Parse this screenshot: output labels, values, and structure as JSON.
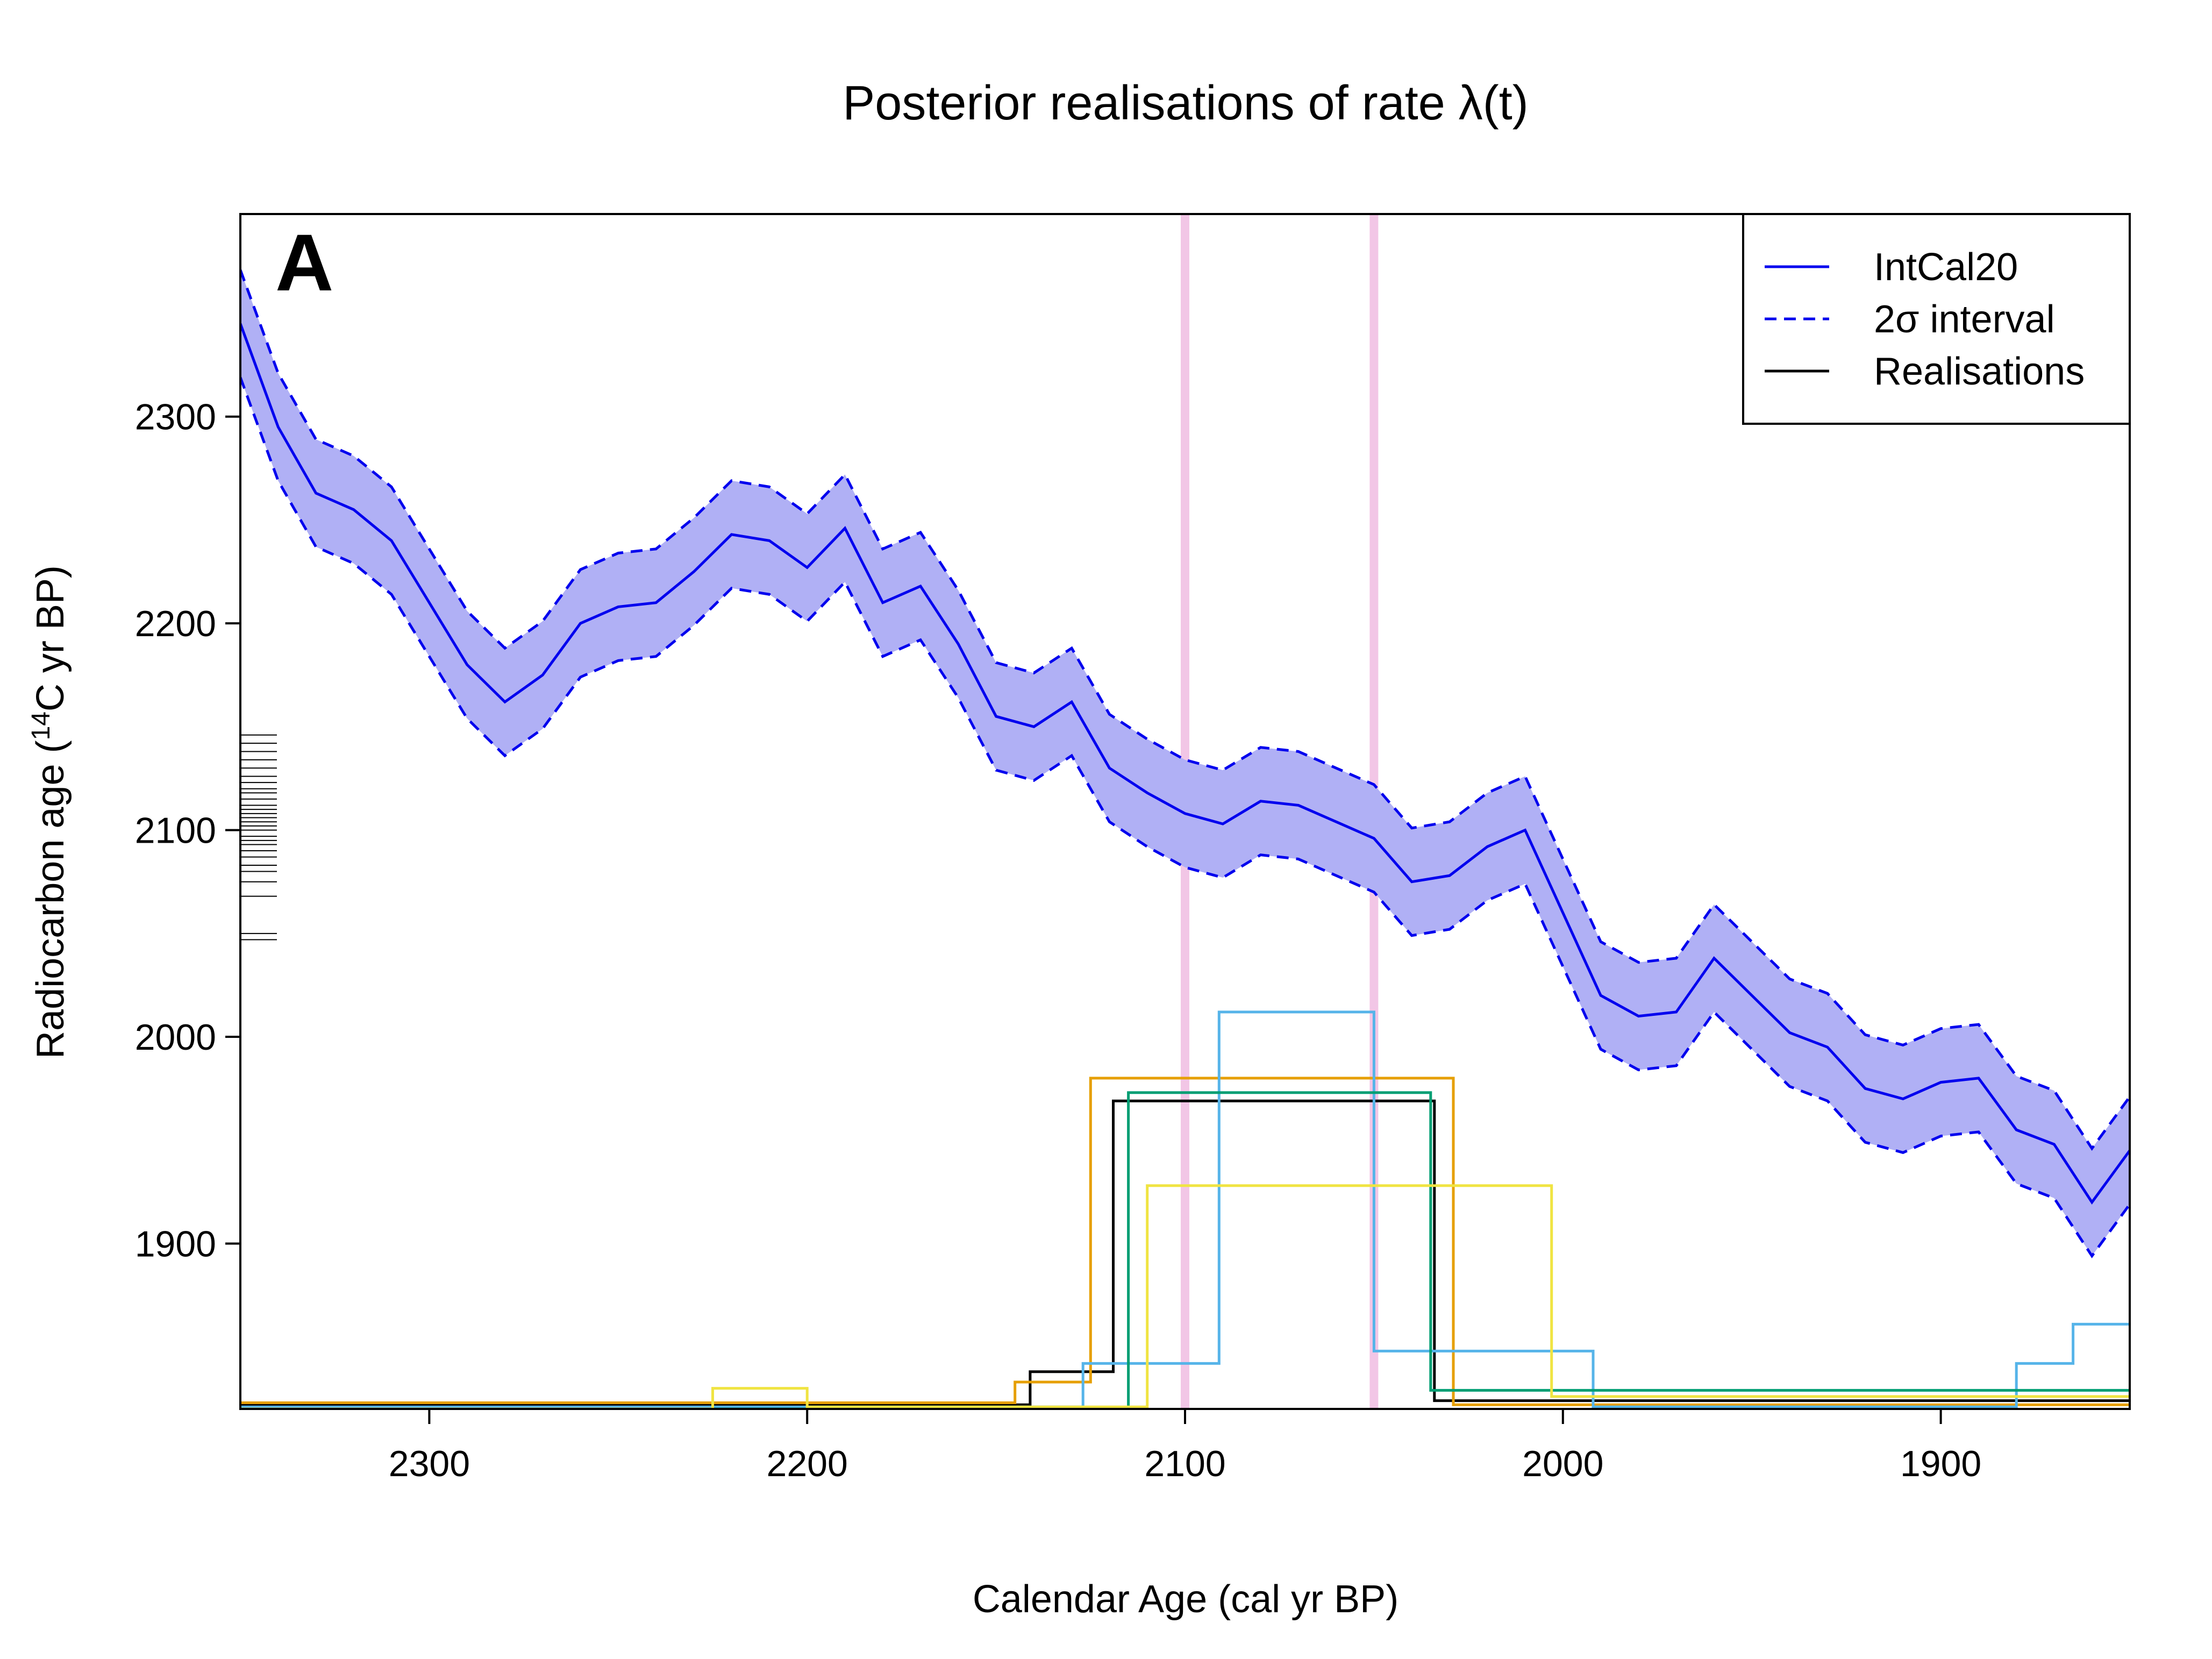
{
  "chart_data": {
    "type": "line",
    "title": "Posterior realisations of rate λ(t)",
    "panel_label": "A",
    "xlabel": "Calendar Age (cal yr BP)",
    "ylabel_prefix": "Radiocarbon age (",
    "ylabel_superscript": "14",
    "ylabel_suffix": "C yr BP)",
    "xlim": [
      2350,
      1850
    ],
    "x_reversed": true,
    "ylim": [
      1820,
      2398
    ],
    "x_ticks": [
      2300,
      2200,
      2100,
      2000,
      1900
    ],
    "y_ticks": [
      1900,
      2000,
      2100,
      2200,
      2300
    ],
    "grid": false,
    "legend_position": "top-right",
    "legend": [
      {
        "label": "IntCal20",
        "style": "solid",
        "color": "#0000ee"
      },
      {
        "label": "2σ interval",
        "style": "dashed",
        "color": "#0000ee"
      },
      {
        "label": "Realisations",
        "style": "solid",
        "color": "#000000"
      }
    ],
    "colors": {
      "curve": "#0000ee",
      "band": "#b0b0f5",
      "highlight": "#f2c6e6",
      "rug": "#000000"
    },
    "highlight_lines_x": [
      2100,
      2050
    ],
    "intcal20": {
      "x": [
        2350,
        2340,
        2330,
        2320,
        2310,
        2300,
        2290,
        2280,
        2270,
        2260,
        2250,
        2240,
        2230,
        2220,
        2210,
        2200,
        2190,
        2180,
        2170,
        2160,
        2150,
        2140,
        2130,
        2120,
        2110,
        2100,
        2090,
        2080,
        2070,
        2060,
        2050,
        2040,
        2030,
        2020,
        2010,
        2000,
        1990,
        1980,
        1970,
        1960,
        1950,
        1940,
        1930,
        1920,
        1910,
        1900,
        1890,
        1880,
        1870,
        1860,
        1850
      ],
      "y": [
        2345,
        2295,
        2263,
        2255,
        2240,
        2210,
        2180,
        2162,
        2175,
        2200,
        2208,
        2210,
        2225,
        2243,
        2240,
        2227,
        2246,
        2210,
        2218,
        2190,
        2155,
        2150,
        2162,
        2130,
        2118,
        2108,
        2103,
        2114,
        2112,
        2104,
        2096,
        2075,
        2078,
        2092,
        2100,
        2060,
        2020,
        2010,
        2012,
        2038,
        2020,
        2002,
        1995,
        1975,
        1970,
        1978,
        1980,
        1955,
        1948,
        1920,
        1945
      ],
      "interval_halfwidth": 26
    },
    "rug_y": [
      2047,
      2050,
      2068,
      2075,
      2080,
      2083,
      2087,
      2090,
      2093,
      2095,
      2097,
      2100,
      2102,
      2104,
      2106,
      2108,
      2110,
      2112,
      2115,
      2118,
      2120,
      2123,
      2126,
      2130,
      2134,
      2138,
      2142,
      2146
    ],
    "rate_baseline_y": 1820,
    "series": [
      {
        "color": "#000000",
        "x": [
          2350,
          2141,
          2141,
          2119,
          2119,
          2034,
          2034,
          1850
        ],
        "y": [
          1822,
          1822,
          1838,
          1838,
          1969,
          1969,
          1824,
          1824
        ]
      },
      {
        "color": "#e69f00",
        "x": [
          2350,
          2145,
          2145,
          2125,
          2125,
          2029,
          2029,
          1850
        ],
        "y": [
          1823,
          1823,
          1833,
          1833,
          1980,
          1980,
          1822,
          1822
        ]
      },
      {
        "color": "#56b4e9",
        "x": [
          2350,
          2127,
          2127,
          2091,
          2091,
          2050,
          2050,
          1992,
          1992,
          1880,
          1880,
          1865,
          1865,
          1850
        ],
        "y": [
          1821,
          1821,
          1842,
          1842,
          2012,
          2012,
          1848,
          1848,
          1821,
          1821,
          1842,
          1842,
          1861,
          1861
        ]
      },
      {
        "color": "#009e73",
        "x": [
          2350,
          2115,
          2115,
          2035,
          2035,
          1850
        ],
        "y": [
          1820,
          1820,
          1973,
          1973,
          1829,
          1829
        ]
      },
      {
        "color": "#f0e442",
        "x": [
          2350,
          2225,
          2225,
          2200,
          2200,
          2110,
          2110,
          2003,
          2003,
          1850
        ],
        "y": [
          1820,
          1820,
          1830,
          1830,
          1821,
          1821,
          1928,
          1928,
          1826,
          1826
        ]
      }
    ]
  }
}
